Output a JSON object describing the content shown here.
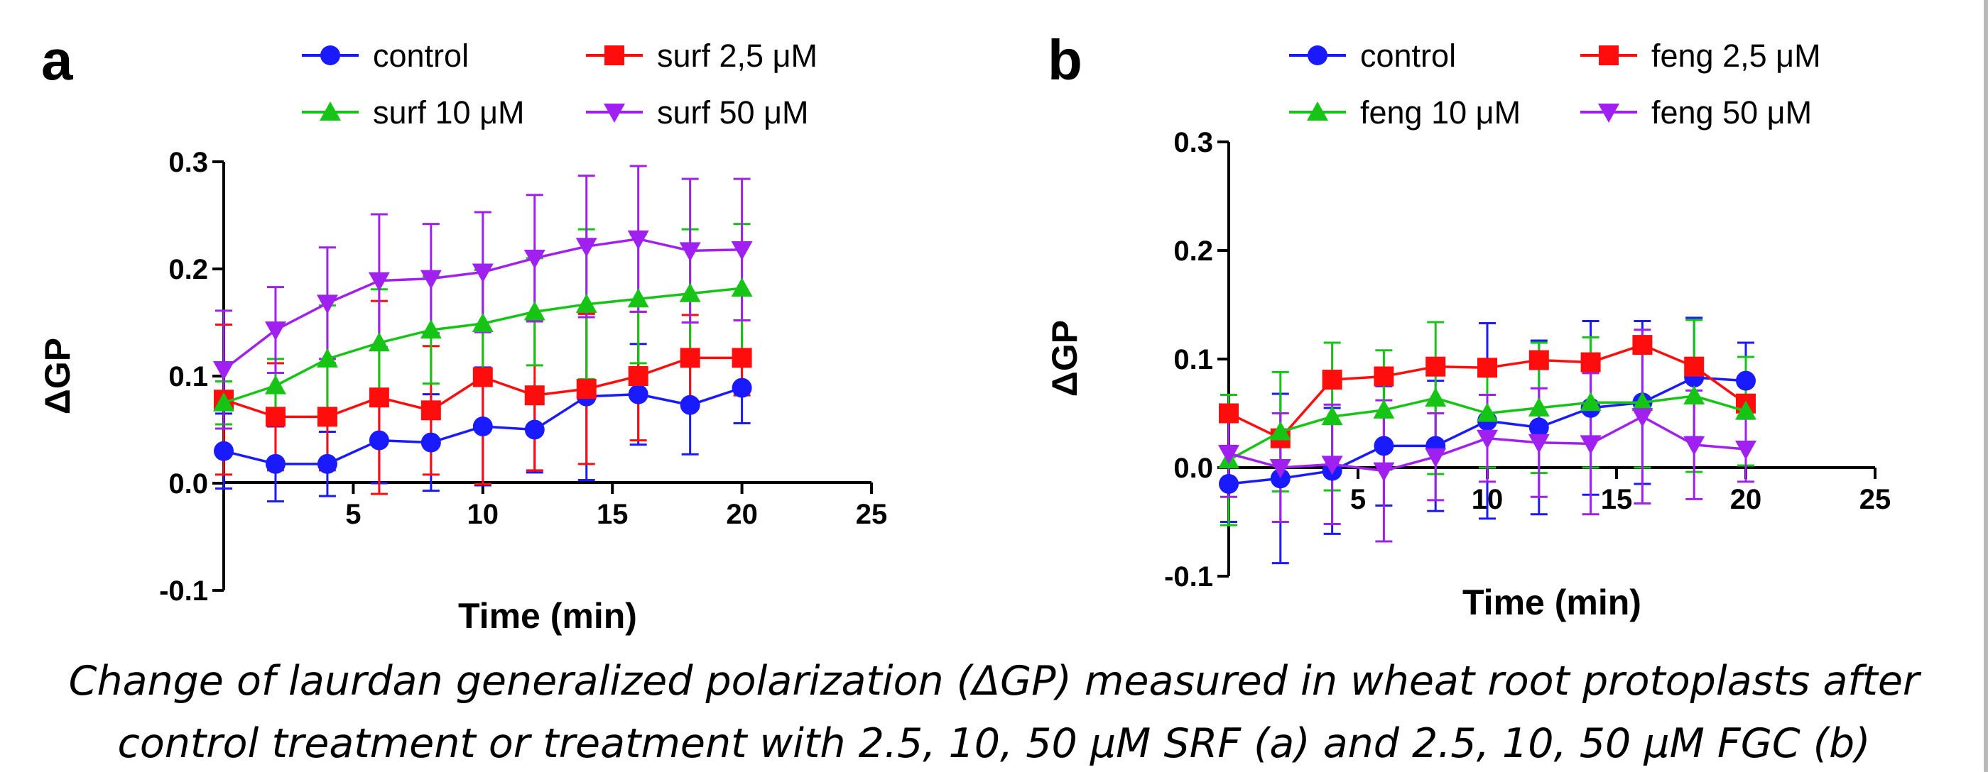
{
  "caption": {
    "line1": "Change of laurdan generalized polarization (ΔGP) measured in wheat root protoplasts after",
    "line2": "control treatment or treatment with 2.5, 10, 50 μM SRF (a) and 2.5, 10, 50 μM FGC (b)"
  },
  "colors": {
    "control": "#1a1aff",
    "dose_2_5": "#ff0d0d",
    "dose_10": "#16c416",
    "dose_50": "#a020f0"
  },
  "chart_data": [
    {
      "panel": "a",
      "type": "line",
      "xlabel": "Time (min)",
      "ylabel": "ΔGP",
      "xlim": [
        0,
        25
      ],
      "ylim": [
        -0.1,
        0.3
      ],
      "xticks": [
        5,
        10,
        15,
        20,
        25
      ],
      "yticks": [
        -0.1,
        0.0,
        0.1,
        0.2,
        0.3
      ],
      "xtick_labels": [
        "5",
        "10",
        "15",
        "20",
        "25"
      ],
      "ytick_labels": [
        "-0.1",
        "0.0",
        "0.1",
        "0.2",
        "0.3"
      ],
      "legend_position": "top",
      "x": [
        0,
        2,
        4,
        6,
        8,
        10,
        12,
        14,
        16,
        18,
        20
      ],
      "series": [
        {
          "name": "control",
          "color": "#1a1aff",
          "marker": "circle",
          "values": [
            0.03,
            0.018,
            0.018,
            0.04,
            0.038,
            0.053,
            0.05,
            0.081,
            0.083,
            0.073,
            0.089
          ],
          "errors": [
            0.035,
            0.035,
            0.03,
            0.04,
            0.045,
            0.055,
            0.04,
            0.078,
            0.047,
            0.046,
            0.033
          ]
        },
        {
          "name": "surf 2,5 μM",
          "color": "#ff0d0d",
          "marker": "square",
          "values": [
            0.078,
            0.062,
            0.062,
            0.08,
            0.068,
            0.099,
            0.082,
            0.088,
            0.1,
            0.117,
            0.117
          ],
          "errors": [
            0.07,
            0.05,
            0.05,
            0.09,
            0.06,
            0.1,
            0.07,
            0.07,
            0.06,
            0.04,
            0.035
          ]
        },
        {
          "name": "surf 10 μM",
          "color": "#16c416",
          "marker": "triangle-up",
          "values": [
            0.075,
            0.091,
            0.116,
            0.131,
            0.143,
            0.149,
            0.16,
            0.167,
            0.172,
            0.177,
            0.182
          ],
          "errors": [
            0.02,
            0.025,
            0.05,
            0.05,
            0.05,
            0.05,
            0.05,
            0.07,
            0.06,
            0.06,
            0.06
          ]
        },
        {
          "name": "surf 50 μM",
          "color": "#a020f0",
          "marker": "triangle-down",
          "values": [
            0.106,
            0.143,
            0.168,
            0.189,
            0.191,
            0.197,
            0.21,
            0.221,
            0.228,
            0.217,
            0.218
          ],
          "errors": [
            0.055,
            0.04,
            0.052,
            0.062,
            0.051,
            0.056,
            0.059,
            0.066,
            0.068,
            0.067,
            0.066
          ]
        }
      ]
    },
    {
      "panel": "b",
      "type": "line",
      "xlabel": "Time (min)",
      "ylabel": "ΔGP",
      "xlim": [
        0,
        25
      ],
      "ylim": [
        -0.1,
        0.3
      ],
      "xticks": [
        5,
        10,
        15,
        20,
        25
      ],
      "yticks": [
        -0.1,
        0.0,
        0.1,
        0.2,
        0.3
      ],
      "xtick_labels": [
        "5",
        "10",
        "15",
        "20",
        "25"
      ],
      "ytick_labels": [
        "-0.1",
        "0.0",
        "0.1",
        "0.2",
        "0.3"
      ],
      "legend_position": "top",
      "x": [
        0,
        2,
        4,
        6,
        8,
        10,
        12,
        14,
        16,
        18,
        20
      ],
      "series": [
        {
          "name": "control",
          "color": "#1a1aff",
          "marker": "circle",
          "values": [
            -0.015,
            -0.01,
            -0.003,
            0.02,
            0.02,
            0.043,
            0.037,
            0.055,
            0.06,
            0.083,
            0.08
          ],
          "errors": [
            0.035,
            0.078,
            0.058,
            0.055,
            0.06,
            0.09,
            0.08,
            0.08,
            0.075,
            0.055,
            0.035
          ]
        },
        {
          "name": "feng 2,5 μM",
          "color": "#ff0d0d",
          "marker": "square",
          "values": [
            0.05,
            0.027,
            0.081,
            0.084,
            0.093,
            0.092,
            0.099,
            0.097,
            0.113,
            0.093,
            0.059
          ]
        },
        {
          "name": "feng 10 μM",
          "color": "#16c416",
          "marker": "triangle-up",
          "values": [
            0.007,
            0.033,
            0.047,
            0.053,
            0.064,
            0.05,
            0.055,
            0.06,
            0.06,
            0.066,
            0.052
          ],
          "errors": [
            0.06,
            0.055,
            0.068,
            0.055,
            0.07,
            0.05,
            0.06,
            0.06,
            0.06,
            0.07,
            0.05
          ]
        },
        {
          "name": "feng 50 μM",
          "color": "#a020f0",
          "marker": "triangle-down",
          "values": [
            0.013,
            0.0,
            0.003,
            -0.003,
            0.01,
            0.027,
            0.023,
            0.022,
            0.047,
            0.021,
            0.017
          ],
          "errors": [
            0.04,
            0.05,
            0.055,
            0.065,
            0.04,
            0.04,
            0.05,
            0.065,
            0.08,
            0.05,
            0.03
          ]
        }
      ]
    }
  ]
}
